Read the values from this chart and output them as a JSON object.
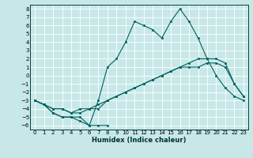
{
  "xlabel": "Humidex (Indice chaleur)",
  "bg_color": "#c8e8e8",
  "grid_color": "#ffffff",
  "line_color": "#006060",
  "xlim": [
    -0.5,
    23.5
  ],
  "ylim": [
    -6.5,
    8.5
  ],
  "xticks": [
    0,
    1,
    2,
    3,
    4,
    5,
    6,
    7,
    8,
    9,
    10,
    11,
    12,
    13,
    14,
    15,
    16,
    17,
    18,
    19,
    20,
    21,
    22,
    23
  ],
  "yticks": [
    -6,
    -5,
    -4,
    -3,
    -2,
    -1,
    0,
    1,
    2,
    3,
    4,
    5,
    6,
    7,
    8
  ],
  "line1_x": [
    0,
    1,
    2,
    3,
    4,
    5,
    6,
    7,
    8
  ],
  "line1_y": [
    -3,
    -3.5,
    -4.5,
    -5,
    -5,
    -5.5,
    -6,
    -6,
    -6
  ],
  "line2_x": [
    0,
    1,
    2,
    3,
    4,
    5,
    6,
    7,
    8,
    9,
    10,
    11,
    12,
    13,
    14,
    15,
    16,
    17,
    18,
    19,
    20,
    21,
    22,
    23
  ],
  "line2_y": [
    -3,
    -3.5,
    -4.5,
    -5,
    -5,
    -5,
    -6,
    -3,
    1,
    2,
    4,
    6.5,
    6,
    5.5,
    4.5,
    6.5,
    8,
    6.5,
    4.5,
    2,
    0,
    -1.5,
    -2.5,
    -3
  ],
  "line3_x": [
    0,
    1,
    2,
    3,
    4,
    5,
    6,
    7,
    8,
    9,
    10,
    11,
    12,
    13,
    14,
    15,
    16,
    17,
    18,
    19,
    20,
    21,
    22,
    23
  ],
  "line3_y": [
    -3,
    -3.5,
    -4,
    -4,
    -4.5,
    -4.5,
    -4,
    -4,
    -3,
    -2.5,
    -2,
    -1.5,
    -1,
    -0.5,
    0,
    0.5,
    1,
    1,
    1,
    1.5,
    1.5,
    1,
    -1,
    -2.5
  ],
  "line4_x": [
    0,
    1,
    2,
    3,
    4,
    5,
    6,
    7,
    8,
    9,
    10,
    11,
    12,
    13,
    14,
    15,
    16,
    17,
    18,
    19,
    20,
    21,
    22,
    23
  ],
  "line4_y": [
    -3,
    -3.5,
    -4,
    -4,
    -4.5,
    -4,
    -4,
    -3.5,
    -3,
    -2.5,
    -2,
    -1.5,
    -1,
    -0.5,
    0,
    0.5,
    1,
    1.5,
    2,
    2,
    2,
    1.5,
    -1,
    -2.5
  ],
  "lw": 0.8,
  "ms": 1.8,
  "tick_fontsize": 5.0,
  "xlabel_fontsize": 6.0
}
